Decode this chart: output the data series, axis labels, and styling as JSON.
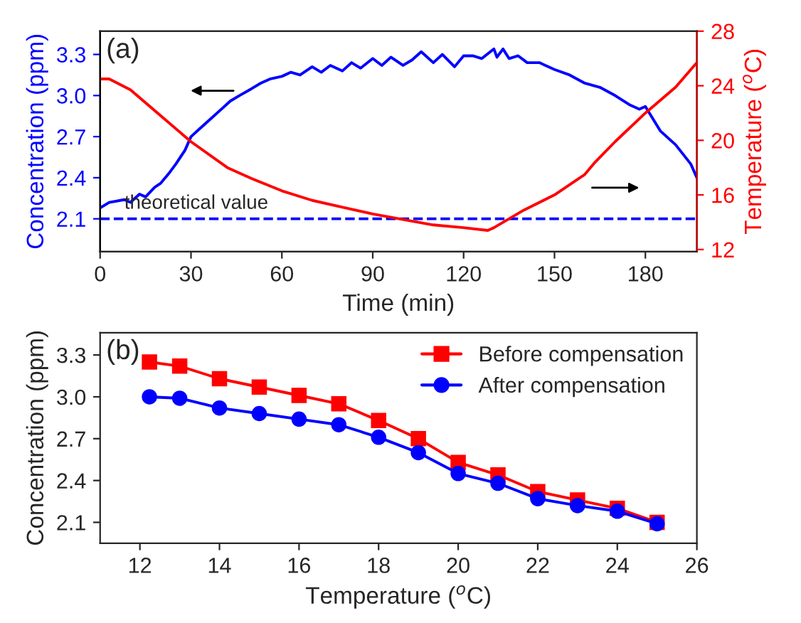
{
  "chart_data": [
    {
      "type": "line",
      "xlabel": "Time (min)",
      "ylabel": "Concentration (ppm)",
      "y2label": "Temperature ($^{o}$C)",
      "xlim": [
        0,
        197
      ],
      "xticks": [
        0,
        30,
        60,
        90,
        120,
        150,
        180
      ],
      "ylim": [
        1.86,
        3.47
      ],
      "yticks": [
        2.1,
        2.4,
        2.7,
        {
          "value": 3,
          "label": "3.0"
        },
        3.3
      ],
      "y2lim": [
        11.84,
        28
      ],
      "y2ticks": [
        12,
        16,
        20,
        24,
        28
      ],
      "grid": false,
      "legend": false,
      "line_style": "solid",
      "marker": "none",
      "annotations": [
        "(a)",
        {
          "text": "theoretical value",
          "x": 8,
          "y": 2.1
        }
      ],
      "ref_lines": [
        {
          "axis": "y",
          "value": 2.1,
          "color": "#0000ff",
          "line_style": "dashed"
        }
      ],
      "series": [
        {
          "color": "#0000ff",
          "x": [
            0,
            3,
            8,
            10,
            13,
            15,
            18,
            20,
            23,
            25,
            28,
            30,
            33,
            36,
            40,
            43,
            46,
            50,
            53,
            56,
            60,
            63,
            66,
            70,
            73,
            76,
            80,
            83,
            86,
            90,
            93,
            96,
            100,
            103,
            106,
            110,
            113,
            117,
            120,
            123,
            126,
            130,
            131,
            133,
            135,
            138,
            141,
            145,
            150,
            155,
            160,
            165,
            170,
            175,
            178,
            180,
            185,
            190,
            195,
            197
          ],
          "values": [
            2.18,
            2.22,
            2.24,
            2.22,
            2.28,
            2.26,
            2.33,
            2.36,
            2.44,
            2.5,
            2.6,
            2.7,
            2.76,
            2.82,
            2.9,
            2.96,
            3.0,
            3.05,
            3.09,
            3.12,
            3.14,
            3.17,
            3.15,
            3.21,
            3.17,
            3.22,
            3.18,
            3.24,
            3.2,
            3.27,
            3.22,
            3.28,
            3.22,
            3.26,
            3.32,
            3.24,
            3.3,
            3.21,
            3.29,
            3.29,
            3.27,
            3.34,
            3.28,
            3.34,
            3.27,
            3.29,
            3.24,
            3.24,
            3.19,
            3.15,
            3.09,
            3.06,
            3.0,
            2.93,
            2.9,
            2.92,
            2.74,
            2.64,
            2.5,
            2.4
          ]
        },
        {
          "color": "#ff0000",
          "axis": "y2",
          "x": [
            0,
            3,
            10,
            20,
            30,
            42,
            50,
            60,
            70,
            80,
            90,
            100,
            110,
            120,
            128,
            130,
            140,
            150,
            160,
            163,
            170,
            180,
            190,
            197
          ],
          "values": [
            24.5,
            24.5,
            23.7,
            21.8,
            19.9,
            18.0,
            17.2,
            16.3,
            15.6,
            15.1,
            14.6,
            14.2,
            13.8,
            13.6,
            13.4,
            13.6,
            14.9,
            16.0,
            17.5,
            18.3,
            19.9,
            22.0,
            23.9,
            25.7
          ]
        }
      ]
    },
    {
      "type": "line",
      "xlabel": "Temperature ($^{o}$C)",
      "ylabel": "Concentration (ppm)",
      "xlim": [
        11,
        26
      ],
      "xticks": [
        12,
        14,
        16,
        18,
        20,
        22,
        24,
        26
      ],
      "ylim": [
        1.95,
        3.46
      ],
      "yticks": [
        2.1,
        2.4,
        2.7,
        {
          "value": 3,
          "label": "3.0"
        },
        3.3
      ],
      "grid": false,
      "legend": "top right",
      "line_style": "solid",
      "annotations": [
        "(b)"
      ],
      "x": [
        12.24,
        13,
        14,
        15,
        16,
        17,
        18,
        19,
        20,
        21,
        22,
        23,
        24,
        25
      ],
      "series": [
        {
          "name": "Before compensation",
          "color": "#ff0000",
          "marker": "square",
          "values": [
            3.25,
            3.22,
            3.13,
            3.07,
            3.01,
            2.95,
            2.83,
            2.7,
            2.53,
            2.44,
            2.32,
            2.26,
            2.2,
            2.1
          ]
        },
        {
          "name": "After compensation",
          "color": "#0000ff",
          "marker": "circle",
          "values": [
            3.0,
            2.99,
            2.92,
            2.88,
            2.84,
            2.8,
            2.71,
            2.6,
            2.45,
            2.38,
            2.27,
            2.22,
            2.18,
            2.09
          ]
        }
      ]
    }
  ]
}
